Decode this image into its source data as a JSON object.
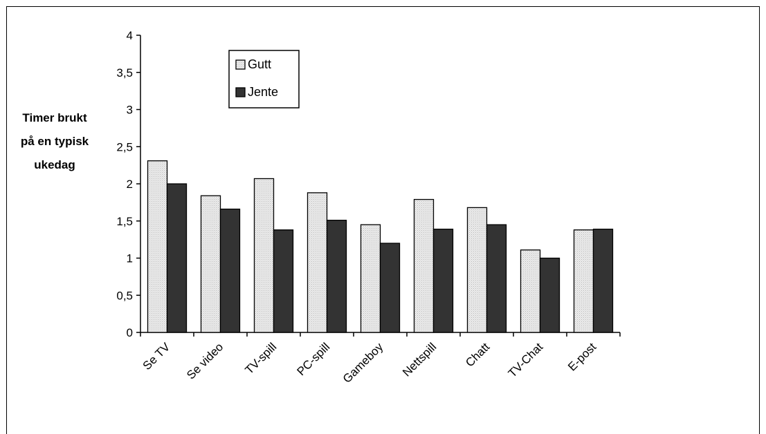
{
  "chart_data": {
    "type": "bar",
    "title": "",
    "xlabel": "",
    "ylabel": [
      "Timer brukt",
      "på en typisk",
      "ukedag"
    ],
    "ylim": [
      0,
      4
    ],
    "yticks": [
      "0",
      "0,5",
      "1",
      "1,5",
      "2",
      "2,5",
      "3",
      "3,5",
      "4"
    ],
    "ytick_values": [
      0,
      0.5,
      1,
      1.5,
      2,
      2.5,
      3,
      3.5,
      4
    ],
    "categories": [
      "Se TV",
      "Se video",
      "TV-spill",
      "PC-spill",
      "Gameboy",
      "Nettspill",
      "Chatt",
      "TV-Chat",
      "E-post"
    ],
    "series": [
      {
        "name": "Gutt",
        "values": [
          2.31,
          1.84,
          2.07,
          1.88,
          1.45,
          1.79,
          1.68,
          1.11,
          1.38
        ],
        "color": "#e2e2e2"
      },
      {
        "name": "Jente",
        "values": [
          2.0,
          1.66,
          1.38,
          1.51,
          1.2,
          1.39,
          1.45,
          1.0,
          1.39
        ],
        "color": "#333333"
      }
    ],
    "legend_position": "top-left",
    "grid": false
  }
}
